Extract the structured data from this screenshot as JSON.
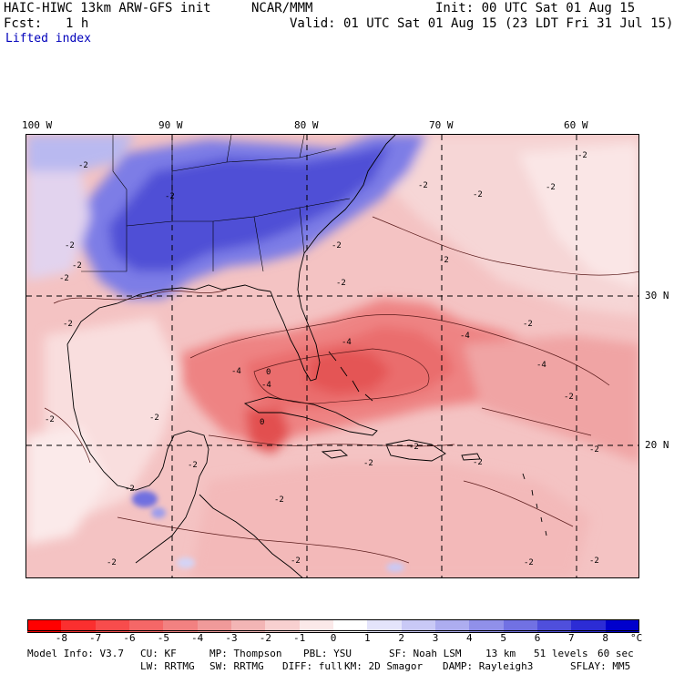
{
  "header": {
    "model": "HAIC-HIWC 13km ARW-GFS init",
    "org": "NCAR/MMM",
    "init": "Init: 00 UTC Sat 01 Aug 15",
    "fcst_label": "Fcst:",
    "fcst_value": "1 h",
    "valid": "Valid: 01 UTC Sat 01 Aug 15 (23 LDT Fri 31 Jul 15)",
    "field": "Lifted index"
  },
  "map": {
    "lon_labels": [
      "100 W",
      "90 W",
      "80 W",
      "70 W",
      "60 W"
    ],
    "lat_labels": [
      "30 N",
      "20 N"
    ],
    "contour_labels": [
      "-2",
      "-2",
      "-2",
      "-2",
      "-2",
      "-2",
      "-2",
      "-2",
      "-2",
      "-2",
      "-2",
      "-2",
      "-2",
      "-4",
      "-4",
      "-4",
      "-4",
      "-4",
      "0",
      "0",
      "-2",
      "-2",
      "-2",
      "-2",
      "-2",
      "-2",
      "-2",
      "-2",
      "-2",
      "-2",
      "-2",
      "-2",
      "-2",
      "-2",
      "-2"
    ]
  },
  "colorbar": {
    "labels": [
      "-8",
      "-7",
      "-6",
      "-5",
      "-4",
      "-3",
      "-2",
      "-1",
      "0",
      "1",
      "2",
      "3",
      "4",
      "5",
      "6",
      "7",
      "8"
    ],
    "unit": "°C",
    "colors": [
      "#ff0000",
      "#fb2f2f",
      "#f84c4c",
      "#f56767",
      "#f28181",
      "#f09a9a",
      "#f3b5b5",
      "#f8d0d0",
      "#fbe9e9",
      "#ffffff",
      "#e4e4fb",
      "#c9c9f6",
      "#adadf0",
      "#9090ea",
      "#7171e3",
      "#4f4fdc",
      "#2c2cd5",
      "#0000cc"
    ]
  },
  "model_info": {
    "line1": [
      "Model Info: V3.7",
      "CU: KF",
      "MP: Thompson",
      "PBL: YSU",
      "SF: Noah LSM",
      "13 km",
      "51 levels",
      "60 sec"
    ],
    "line2": [
      "LW: RRTMG",
      "SW: RRTMG",
      "DIFF: full",
      "KM: 2D Smagor",
      "DAMP: Rayleigh3",
      "SFLAY: MM5"
    ]
  }
}
